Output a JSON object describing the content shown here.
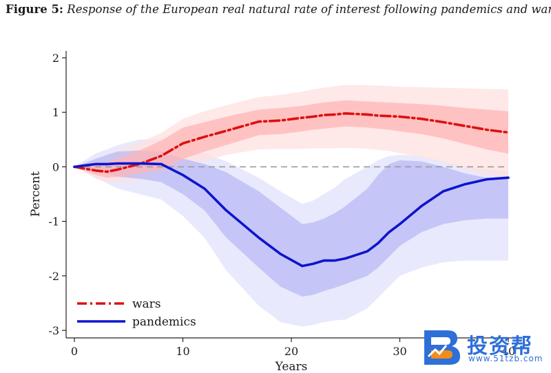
{
  "figure": {
    "label": "Figure 5:",
    "caption": "Response of the European real natural rate of interest following pandemics and wars"
  },
  "watermark": {
    "brand": "投资帮",
    "url": "www.51tzb.com"
  },
  "colors": {
    "wars": "#dd1010",
    "wars_band_inner": "#ffb5b5",
    "wars_band_outer": "#ffe0e0",
    "pandemics": "#0f14cc",
    "pandemics_band_inner": "#b9baf6",
    "pandemics_band_outer": "#e0e1fb",
    "zero_line": "#999999",
    "axis": "#222222"
  },
  "chart_data": {
    "type": "line",
    "title": "Response of the European real natural rate of interest following pandemics and wars",
    "xlabel": "Years",
    "ylabel": "Percent",
    "xlim": [
      0,
      40
    ],
    "ylim": [
      -3,
      2
    ],
    "xticks": [
      0,
      10,
      20,
      30,
      40
    ],
    "yticks": [
      -3,
      -2,
      -1,
      0,
      1,
      2
    ],
    "legend_position": "bottom-left",
    "grid": false,
    "reference_line": 0,
    "x": [
      0,
      2,
      3,
      4,
      6,
      8,
      10,
      12,
      14,
      17,
      19,
      21,
      22,
      23,
      24,
      25,
      27,
      28,
      29,
      30,
      32,
      34,
      36,
      38,
      40
    ],
    "series": [
      {
        "name": "wars",
        "style": "dash-dot",
        "values": [
          0,
          -0.07,
          -0.09,
          -0.05,
          0.05,
          0.2,
          0.43,
          0.55,
          0.66,
          0.83,
          0.85,
          0.9,
          0.92,
          0.95,
          0.96,
          0.98,
          0.96,
          0.94,
          0.93,
          0.92,
          0.88,
          0.82,
          0.75,
          0.68,
          0.63
        ],
        "band_inner_upper": [
          0,
          0.05,
          0.08,
          0.15,
          0.3,
          0.48,
          0.72,
          0.82,
          0.92,
          1.05,
          1.08,
          1.12,
          1.15,
          1.18,
          1.2,
          1.22,
          1.2,
          1.19,
          1.18,
          1.17,
          1.15,
          1.12,
          1.08,
          1.05,
          1.02
        ],
        "band_inner_lower": [
          0,
          -0.15,
          -0.2,
          -0.18,
          -0.12,
          -0.05,
          0.14,
          0.28,
          0.4,
          0.58,
          0.6,
          0.65,
          0.68,
          0.7,
          0.72,
          0.74,
          0.72,
          0.7,
          0.68,
          0.65,
          0.6,
          0.52,
          0.42,
          0.32,
          0.24
        ],
        "band_outer_upper": [
          0,
          0.12,
          0.2,
          0.3,
          0.45,
          0.62,
          0.88,
          1.02,
          1.13,
          1.28,
          1.32,
          1.38,
          1.42,
          1.45,
          1.48,
          1.5,
          1.5,
          1.49,
          1.48,
          1.47,
          1.46,
          1.45,
          1.44,
          1.43,
          1.42
        ],
        "band_outer_lower": [
          0,
          -0.22,
          -0.28,
          -0.28,
          -0.25,
          -0.2,
          -0.02,
          0.1,
          0.22,
          0.32,
          0.33,
          0.33,
          0.34,
          0.34,
          0.34,
          0.35,
          0.33,
          0.31,
          0.29,
          0.25,
          0.18,
          0.08,
          -0.05,
          -0.15,
          -0.18
        ]
      },
      {
        "name": "pandemics",
        "style": "solid",
        "values": [
          0,
          0.05,
          0.05,
          0.06,
          0.06,
          0.05,
          -0.15,
          -0.4,
          -0.8,
          -1.3,
          -1.6,
          -1.82,
          -1.78,
          -1.72,
          -1.72,
          -1.68,
          -1.55,
          -1.4,
          -1.2,
          -1.05,
          -0.72,
          -0.45,
          -0.32,
          -0.23,
          -0.2
        ],
        "band_inner_upper": [
          0,
          0.15,
          0.22,
          0.28,
          0.3,
          0.28,
          0.15,
          0.05,
          -0.1,
          -0.45,
          -0.75,
          -1.05,
          -1.02,
          -0.95,
          -0.85,
          -0.72,
          -0.4,
          -0.15,
          0.05,
          0.12,
          0.1,
          0.0,
          -0.12,
          -0.2,
          -0.22
        ],
        "band_inner_lower": [
          0,
          -0.08,
          -0.12,
          -0.18,
          -0.22,
          -0.28,
          -0.5,
          -0.8,
          -1.3,
          -1.85,
          -2.2,
          -2.38,
          -2.35,
          -2.28,
          -2.22,
          -2.15,
          -2.0,
          -1.85,
          -1.65,
          -1.45,
          -1.2,
          -1.05,
          -0.98,
          -0.95,
          -0.95
        ],
        "band_outer_upper": [
          0,
          0.25,
          0.32,
          0.4,
          0.5,
          0.5,
          0.35,
          0.25,
          0.1,
          -0.2,
          -0.45,
          -0.68,
          -0.62,
          -0.5,
          -0.38,
          -0.22,
          0.0,
          0.12,
          0.2,
          0.22,
          0.2,
          0.1,
          0.0,
          -0.05,
          -0.08
        ],
        "band_outer_lower": [
          0,
          -0.2,
          -0.3,
          -0.4,
          -0.5,
          -0.6,
          -0.9,
          -1.3,
          -1.9,
          -2.55,
          -2.85,
          -2.93,
          -2.9,
          -2.85,
          -2.82,
          -2.8,
          -2.6,
          -2.4,
          -2.2,
          -2.0,
          -1.85,
          -1.75,
          -1.72,
          -1.72,
          -1.72
        ]
      }
    ]
  }
}
